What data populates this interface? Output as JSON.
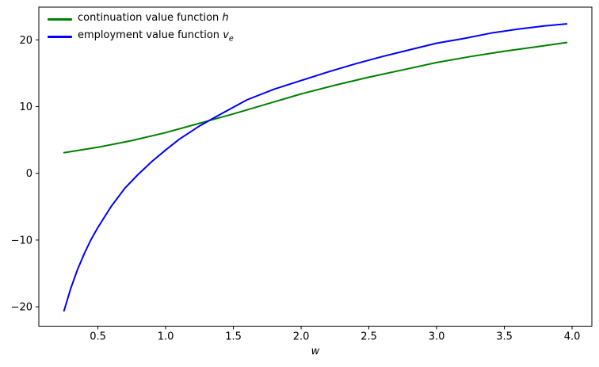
{
  "figure": {
    "background": "#ffffff",
    "frame_color": "#000000",
    "tick_color": "#000000",
    "text_color": "#000000"
  },
  "legend": {
    "position": "upper left",
    "entries": [
      {
        "label": "continuation value function ",
        "math": "h",
        "sub": "",
        "color": "#008000"
      },
      {
        "label": "employment value function ",
        "math": "v",
        "sub": "e",
        "color": "#0000ff"
      }
    ]
  },
  "chart_data": {
    "type": "line",
    "title": "",
    "xlabel": "w",
    "ylabel": "",
    "grid": false,
    "legend_position": "upper left",
    "xlim": [
      0.064,
      4.146
    ],
    "ylim": [
      -22.9,
      24.9
    ],
    "xtick_values": [
      0.5,
      1.0,
      1.5,
      2.0,
      2.5,
      3.0,
      3.5,
      4.0
    ],
    "xtick_labels": [
      "0.5",
      "1.0",
      "1.5",
      "2.0",
      "2.5",
      "3.0",
      "3.5",
      "4.0"
    ],
    "ytick_values": [
      -20,
      -10,
      0,
      10,
      20
    ],
    "ytick_labels": [
      "−20",
      "−10",
      "0",
      "10",
      "20"
    ],
    "series": [
      {
        "id": "continuation-value",
        "name": "continuation value function h",
        "color": "#008000",
        "line_width": 2,
        "x": [
          0.25,
          0.5,
          0.75,
          1.0,
          1.25,
          1.5,
          1.75,
          2.0,
          2.25,
          2.5,
          2.75,
          3.0,
          3.25,
          3.5,
          3.75,
          3.96
        ],
        "y": [
          3.1,
          3.9,
          4.9,
          6.1,
          7.5,
          8.9,
          10.4,
          11.9,
          13.2,
          14.4,
          15.5,
          16.6,
          17.5,
          18.3,
          19.0,
          19.6
        ]
      },
      {
        "id": "employment-value",
        "name": "employment value function v_e",
        "color": "#0000ff",
        "line_width": 2,
        "x": [
          0.25,
          0.3,
          0.35,
          0.4,
          0.45,
          0.5,
          0.6,
          0.7,
          0.8,
          0.9,
          1.0,
          1.1,
          1.25,
          1.4,
          1.6,
          1.8,
          2.0,
          2.2,
          2.4,
          2.6,
          2.8,
          3.0,
          3.2,
          3.4,
          3.6,
          3.8,
          3.96
        ],
        "y": [
          -20.6,
          -17.2,
          -14.4,
          -12.0,
          -9.9,
          -8.1,
          -4.9,
          -2.2,
          -0.1,
          1.8,
          3.5,
          5.1,
          7.1,
          8.8,
          11.0,
          12.6,
          13.9,
          15.2,
          16.4,
          17.5,
          18.5,
          19.5,
          20.2,
          21.0,
          21.6,
          22.1,
          22.4
        ]
      }
    ]
  }
}
